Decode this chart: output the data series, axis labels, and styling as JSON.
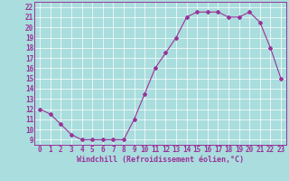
{
  "x": [
    0,
    1,
    2,
    3,
    4,
    5,
    6,
    7,
    8,
    9,
    10,
    11,
    12,
    13,
    14,
    15,
    16,
    17,
    18,
    19,
    20,
    21,
    22,
    23
  ],
  "y": [
    12,
    11.5,
    10.5,
    9.5,
    9,
    9,
    9,
    9,
    9,
    11,
    13.5,
    16,
    17.5,
    19,
    21,
    21.5,
    21.5,
    21.5,
    21,
    21,
    21.5,
    20.5,
    18,
    15
  ],
  "line_color": "#993399",
  "marker": "D",
  "marker_size": 2.0,
  "line_width": 0.8,
  "bg_color": "#aadddd",
  "grid_color": "#bbdddd",
  "xlabel": "Windchill (Refroidissement éolien,°C)",
  "xlabel_color": "#993399",
  "xlabel_fontsize": 6,
  "tick_color": "#993399",
  "tick_fontsize": 5.5,
  "ylim": [
    8.5,
    22.5
  ],
  "xlim": [
    -0.5,
    23.5
  ],
  "yticks": [
    9,
    10,
    11,
    12,
    13,
    14,
    15,
    16,
    17,
    18,
    19,
    20,
    21,
    22
  ],
  "xticks": [
    0,
    1,
    2,
    3,
    4,
    5,
    6,
    7,
    8,
    9,
    10,
    11,
    12,
    13,
    14,
    15,
    16,
    17,
    18,
    19,
    20,
    21,
    22,
    23
  ]
}
